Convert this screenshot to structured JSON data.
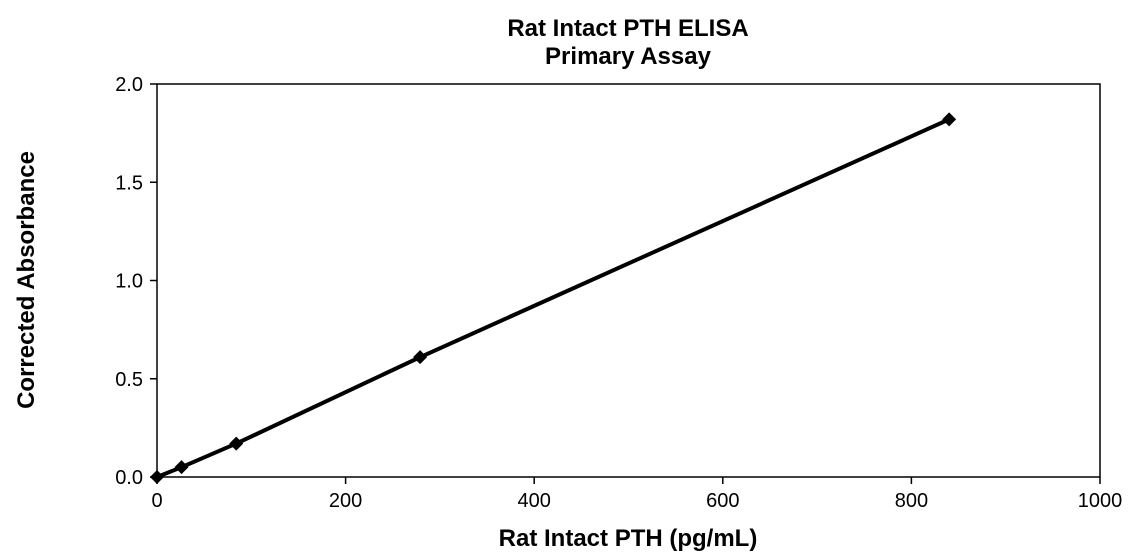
{
  "chart_data": {
    "type": "line",
    "title": "Rat Intact PTH ELISA",
    "subtitle": "Primary Assay",
    "xlabel": "Rat Intact PTH (pg/mL)",
    "ylabel": "Corrected Absorbance",
    "xlim": [
      0,
      1000
    ],
    "ylim": [
      0,
      2.0
    ],
    "x_ticks": [
      "0",
      "200",
      "400",
      "600",
      "800",
      "1000"
    ],
    "y_ticks": [
      "0.0",
      "0.5",
      "1.0",
      "1.5",
      "2.0"
    ],
    "grid": false,
    "legend": "none",
    "series": [
      {
        "marker": "diamond",
        "color": "#000000",
        "x": [
          0,
          26,
          84,
          279,
          840
        ],
        "y": [
          0.0,
          0.05,
          0.17,
          0.61,
          1.82
        ]
      }
    ]
  }
}
